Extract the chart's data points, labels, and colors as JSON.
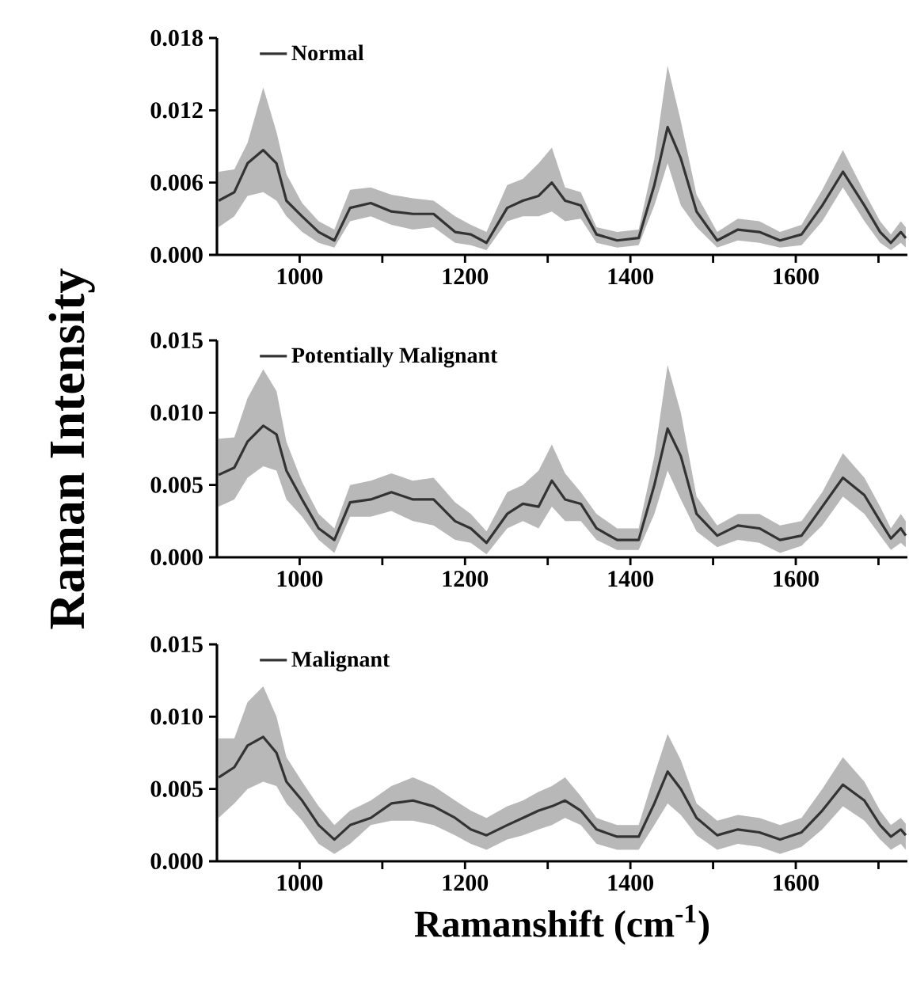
{
  "chart_data": [
    {
      "type": "line",
      "x": [
        902,
        921,
        937,
        956,
        972,
        984,
        1003,
        1023,
        1042,
        1061,
        1086,
        1111,
        1137,
        1162,
        1188,
        1207,
        1226,
        1251,
        1270,
        1289,
        1305,
        1321,
        1340,
        1359,
        1384,
        1410,
        1429,
        1445,
        1461,
        1480,
        1505,
        1530,
        1556,
        1581,
        1607,
        1632,
        1657,
        1683,
        1702,
        1715,
        1727,
        1733
      ],
      "series": [
        {
          "name": "Normal",
          "color": "#333333",
          "values": [
            0.0045,
            0.0052,
            0.0076,
            0.0087,
            0.0076,
            0.0045,
            0.0032,
            0.0019,
            0.0012,
            0.0039,
            0.0043,
            0.0036,
            0.0034,
            0.0034,
            0.0019,
            0.0017,
            0.001,
            0.0039,
            0.0045,
            0.0049,
            0.006,
            0.0045,
            0.0041,
            0.0017,
            0.0012,
            0.0014,
            0.0058,
            0.0106,
            0.008,
            0.0036,
            0.0012,
            0.0021,
            0.0019,
            0.0012,
            0.0017,
            0.0041,
            0.0069,
            0.0041,
            0.0019,
            0.001,
            0.0019,
            0.0014
          ],
          "lower": [
            0.0023,
            0.0032,
            0.0049,
            0.0052,
            0.0045,
            0.0032,
            0.0019,
            0.001,
            0.0006,
            0.0028,
            0.0032,
            0.0025,
            0.0021,
            0.0023,
            0.001,
            0.0008,
            0.0004,
            0.0028,
            0.0032,
            0.0032,
            0.0036,
            0.0028,
            0.003,
            0.001,
            0.0006,
            0.0008,
            0.0041,
            0.0076,
            0.0041,
            0.0023,
            0.0006,
            0.0012,
            0.001,
            0.0006,
            0.0008,
            0.0028,
            0.0056,
            0.0028,
            0.001,
            0.0004,
            0.001,
            0.0006
          ],
          "upper": [
            0.0069,
            0.0071,
            0.0093,
            0.0139,
            0.0102,
            0.0067,
            0.0043,
            0.0028,
            0.0021,
            0.0054,
            0.0056,
            0.005,
            0.0047,
            0.0045,
            0.0032,
            0.0025,
            0.0019,
            0.0058,
            0.0063,
            0.0076,
            0.0089,
            0.0056,
            0.0052,
            0.0023,
            0.0019,
            0.0021,
            0.008,
            0.0157,
            0.0111,
            0.005,
            0.0019,
            0.003,
            0.0028,
            0.0019,
            0.0025,
            0.0054,
            0.0087,
            0.0052,
            0.0028,
            0.0017,
            0.0028,
            0.0023
          ]
        }
      ],
      "xlim": [
        900,
        1735
      ],
      "ylim": [
        0,
        0.018
      ],
      "xticks": [
        1000,
        {
          "value": 1100,
          "label": null
        },
        1200,
        {
          "value": 1300,
          "label": null
        },
        1400,
        {
          "value": 1500,
          "label": null
        },
        1600,
        {
          "value": 1700,
          "label": null
        }
      ],
      "yticks": [
        {
          "value": 0,
          "label": "0.000"
        },
        {
          "value": 0.006,
          "label": "0.006"
        },
        {
          "value": 0.012,
          "label": "0.012"
        },
        {
          "value": 0.018,
          "label": "0.018"
        }
      ],
      "legend": "top left"
    },
    {
      "type": "line",
      "x": [
        902,
        921,
        937,
        956,
        972,
        984,
        1003,
        1023,
        1042,
        1061,
        1086,
        1111,
        1137,
        1162,
        1188,
        1207,
        1226,
        1251,
        1270,
        1289,
        1305,
        1321,
        1340,
        1359,
        1384,
        1410,
        1429,
        1445,
        1461,
        1480,
        1505,
        1530,
        1556,
        1581,
        1607,
        1632,
        1657,
        1683,
        1702,
        1715,
        1727,
        1733
      ],
      "series": [
        {
          "name": "Potentially Malignant",
          "color": "#333333",
          "values": [
            0.0057,
            0.0062,
            0.008,
            0.0091,
            0.0085,
            0.006,
            0.004,
            0.002,
            0.0012,
            0.0038,
            0.004,
            0.0045,
            0.004,
            0.004,
            0.0025,
            0.002,
            0.001,
            0.003,
            0.0037,
            0.0035,
            0.0053,
            0.004,
            0.0037,
            0.002,
            0.0012,
            0.0012,
            0.005,
            0.0089,
            0.007,
            0.003,
            0.0015,
            0.0022,
            0.002,
            0.0012,
            0.0015,
            0.0035,
            0.0055,
            0.0043,
            0.0025,
            0.0013,
            0.002,
            0.0015
          ],
          "lower": [
            0.0035,
            0.004,
            0.0055,
            0.0063,
            0.006,
            0.004,
            0.0028,
            0.0012,
            0.0003,
            0.0028,
            0.0028,
            0.0032,
            0.0025,
            0.0022,
            0.0012,
            0.001,
            0.0002,
            0.002,
            0.0025,
            0.002,
            0.0035,
            0.0025,
            0.0025,
            0.0012,
            0.0005,
            0.0005,
            0.003,
            0.006,
            0.004,
            0.0018,
            0.0007,
            0.0012,
            0.001,
            0.0003,
            0.0008,
            0.0022,
            0.0042,
            0.003,
            0.0015,
            0.0005,
            0.001,
            0.0007
          ],
          "upper": [
            0.0082,
            0.0083,
            0.011,
            0.013,
            0.0115,
            0.008,
            0.0052,
            0.003,
            0.002,
            0.005,
            0.0053,
            0.0058,
            0.0053,
            0.0055,
            0.0038,
            0.003,
            0.0018,
            0.0045,
            0.005,
            0.006,
            0.0078,
            0.0058,
            0.0045,
            0.003,
            0.002,
            0.002,
            0.007,
            0.0133,
            0.01,
            0.0042,
            0.0022,
            0.003,
            0.003,
            0.0022,
            0.0025,
            0.0045,
            0.0072,
            0.0055,
            0.0035,
            0.002,
            0.003,
            0.0025
          ]
        }
      ],
      "xlim": [
        900,
        1735
      ],
      "ylim": [
        0,
        0.015
      ],
      "xticks": [
        1000,
        {
          "value": 1100,
          "label": null
        },
        1200,
        {
          "value": 1300,
          "label": null
        },
        1400,
        {
          "value": 1500,
          "label": null
        },
        1600,
        {
          "value": 1700,
          "label": null
        }
      ],
      "yticks": [
        {
          "value": 0,
          "label": "0.000"
        },
        {
          "value": 0.005,
          "label": "0.005"
        },
        {
          "value": 0.01,
          "label": "0.010"
        },
        {
          "value": 0.015,
          "label": "0.015"
        }
      ],
      "ylabel": "Raman Intensity",
      "legend": "top left"
    },
    {
      "type": "line",
      "x": [
        902,
        921,
        937,
        956,
        972,
        984,
        1003,
        1023,
        1042,
        1061,
        1086,
        1111,
        1137,
        1162,
        1188,
        1207,
        1226,
        1251,
        1270,
        1289,
        1305,
        1321,
        1340,
        1359,
        1384,
        1410,
        1429,
        1445,
        1461,
        1480,
        1505,
        1530,
        1556,
        1581,
        1607,
        1632,
        1657,
        1683,
        1702,
        1715,
        1727,
        1733
      ],
      "series": [
        {
          "name": "Malignant",
          "color": "#333333",
          "values": [
            0.0058,
            0.0065,
            0.008,
            0.0086,
            0.0075,
            0.0055,
            0.0042,
            0.0025,
            0.0015,
            0.0025,
            0.003,
            0.004,
            0.0042,
            0.0038,
            0.003,
            0.0022,
            0.0018,
            0.0025,
            0.003,
            0.0035,
            0.0038,
            0.0042,
            0.0035,
            0.0022,
            0.0017,
            0.0017,
            0.004,
            0.0062,
            0.005,
            0.003,
            0.0018,
            0.0022,
            0.002,
            0.0015,
            0.002,
            0.0035,
            0.0053,
            0.0042,
            0.0025,
            0.0017,
            0.0022,
            0.0018
          ],
          "lower": [
            0.003,
            0.004,
            0.005,
            0.0055,
            0.0052,
            0.004,
            0.0028,
            0.0012,
            0.0005,
            0.0012,
            0.0025,
            0.0028,
            0.0028,
            0.0025,
            0.0018,
            0.0012,
            0.0008,
            0.0015,
            0.0018,
            0.0022,
            0.0025,
            0.003,
            0.0025,
            0.0012,
            0.0008,
            0.0008,
            0.0025,
            0.004,
            0.0032,
            0.0018,
            0.0008,
            0.0012,
            0.001,
            0.0005,
            0.001,
            0.0022,
            0.0038,
            0.0028,
            0.0015,
            0.0008,
            0.0012,
            0.0008
          ],
          "upper": [
            0.0085,
            0.0085,
            0.011,
            0.0121,
            0.01,
            0.0072,
            0.0055,
            0.0038,
            0.0025,
            0.0035,
            0.0042,
            0.0052,
            0.0058,
            0.0052,
            0.0042,
            0.0035,
            0.003,
            0.0038,
            0.0042,
            0.0048,
            0.0052,
            0.0058,
            0.0045,
            0.003,
            0.0025,
            0.0025,
            0.006,
            0.0088,
            0.007,
            0.004,
            0.0028,
            0.0032,
            0.003,
            0.0025,
            0.003,
            0.005,
            0.0072,
            0.0055,
            0.0035,
            0.0025,
            0.003,
            0.0026
          ]
        }
      ],
      "xlim": [
        900,
        1735
      ],
      "ylim": [
        0,
        0.015
      ],
      "xticks": [
        1000,
        {
          "value": 1100,
          "label": null
        },
        1200,
        {
          "value": 1300,
          "label": null
        },
        1400,
        {
          "value": 1500,
          "label": null
        },
        1600,
        {
          "value": 1700,
          "label": null
        }
      ],
      "yticks": [
        {
          "value": 0,
          "label": "0.000"
        },
        {
          "value": 0.005,
          "label": "0.005"
        },
        {
          "value": 0.01,
          "label": "0.010"
        },
        {
          "value": 0.015,
          "label": "0.015"
        }
      ],
      "xlabel": "Ramanshift (cm$^{-1}$)",
      "legend": "top left"
    }
  ]
}
